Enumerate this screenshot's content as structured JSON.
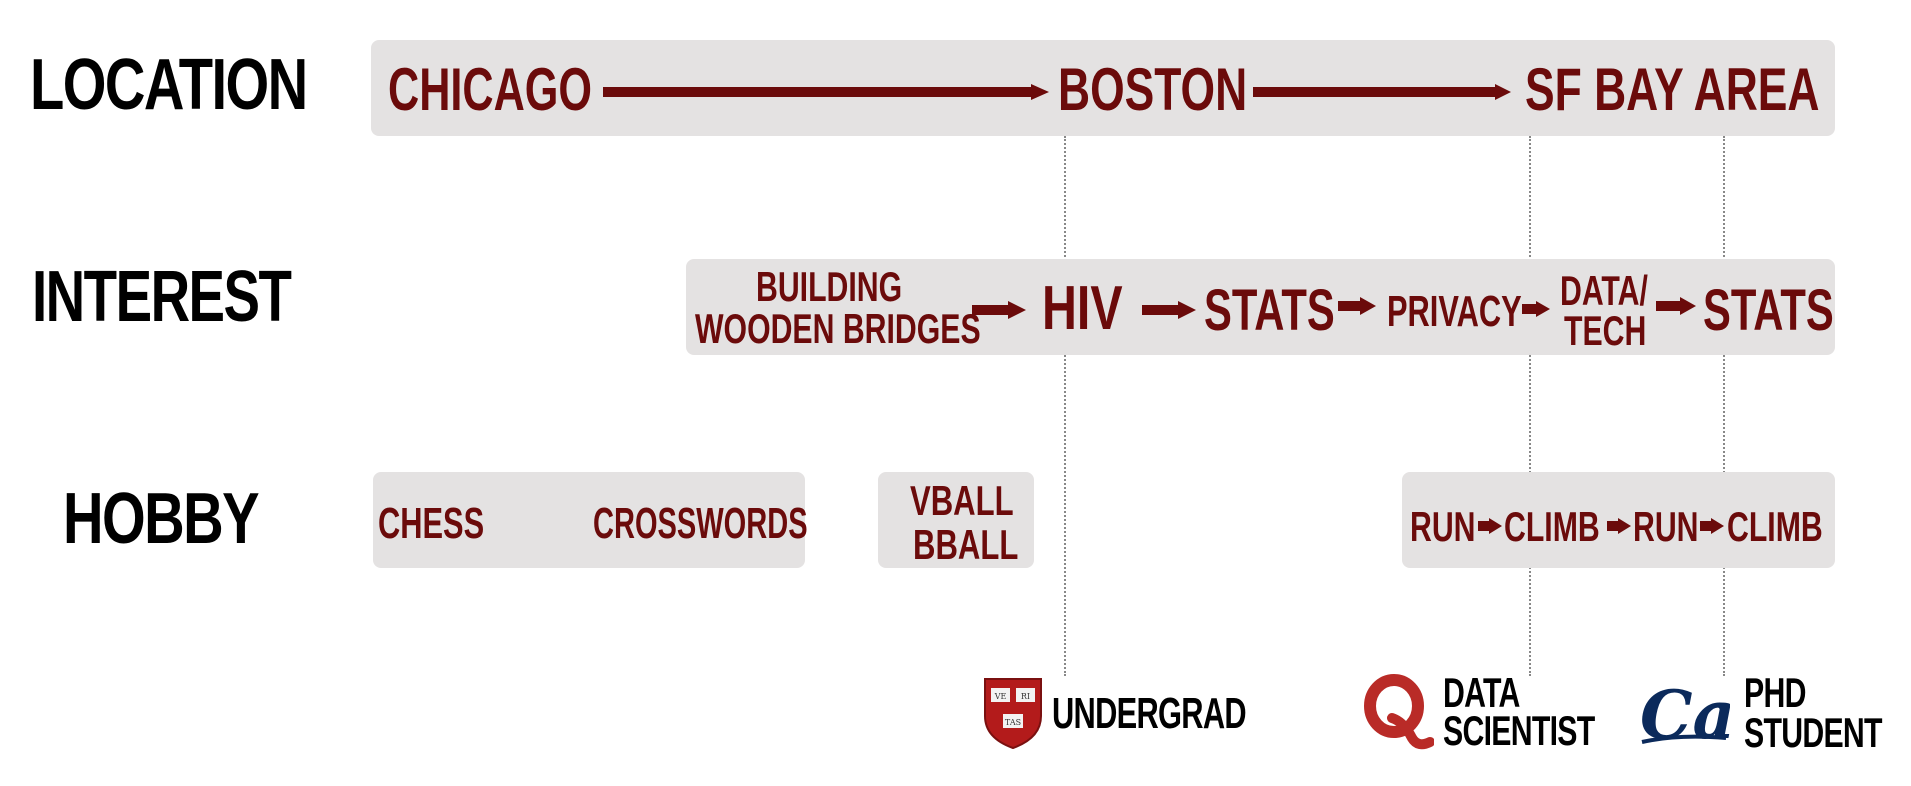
{
  "rows": {
    "location": "LOCATION",
    "interest": "INTEREST",
    "hobby": "HOBBY"
  },
  "location": {
    "stages": [
      "CHICAGO",
      "BOSTON",
      "SF BAY AREA"
    ]
  },
  "interest": {
    "stages": [
      "BUILDING",
      "WOODEN BRIDGES",
      "HIV",
      "STATS",
      "PRIVACY",
      "DATA/",
      "TECH",
      "STATS"
    ]
  },
  "hobby": {
    "group1": [
      "CHESS",
      "CROSSWORDS"
    ],
    "group2": [
      "VBALL",
      "BBALL"
    ],
    "group3": [
      "RUN",
      "CLIMB",
      "RUN",
      "CLIMB"
    ]
  },
  "milestones": [
    {
      "icon": "harvard-shield-icon",
      "lines": [
        "UNDERGRAD"
      ]
    },
    {
      "icon": "quora-q-icon",
      "lines": [
        "DATA",
        "SCIENTIST"
      ]
    },
    {
      "icon": "cal-logo-icon",
      "lines": [
        "PHD",
        "STUDENT"
      ]
    }
  ],
  "colors": {
    "accent": "#6b0b0b",
    "band": "#e4e2e2",
    "harvard_red": "#b31b1b",
    "quora_red": "#b92b27",
    "cal_blue": "#0b2a5b"
  }
}
